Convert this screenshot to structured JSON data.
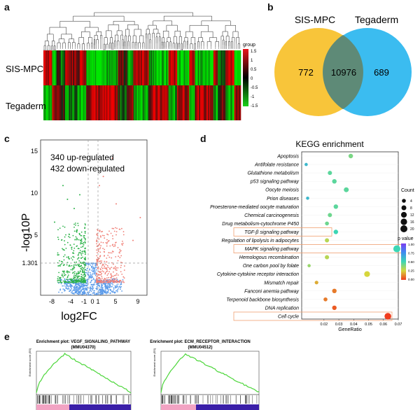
{
  "panels": {
    "a": "a",
    "b": "b",
    "c": "c",
    "d": "d",
    "e": "e"
  },
  "heatmap": {
    "legend_title": "group",
    "legend_ticks": [
      "1.5",
      "1",
      "0.5",
      "0",
      "-0.5",
      "-1",
      "-1.5"
    ],
    "row_labels": [
      "SIS-MPC",
      "Tegaderm"
    ],
    "colors": {
      "high": "#e8161a",
      "mid": "#000000",
      "low": "#19d219"
    }
  },
  "venn": {
    "left_label": "SIS-MPC",
    "right_label": "Tegaderm",
    "left_only": "772",
    "both": "10976",
    "right_only": "689",
    "colors": {
      "left": "#f8c53a",
      "right": "#3bbcf0",
      "overlap": "#5e8a77"
    }
  },
  "volcano": {
    "up_text": "340 up-regulated",
    "down_text": "432 down-regulated",
    "ylabel": "-log10P",
    "xlabel": "log2FC",
    "x_ticks": [
      "-8",
      "-4",
      "-1",
      "0",
      "1",
      "5",
      "9"
    ],
    "y_ticks": [
      "15",
      "10",
      "5",
      "1.301"
    ],
    "colors": {
      "up": "#f07f76",
      "down": "#2db24a",
      "ns": "#5b9bea"
    }
  },
  "chart_data": [
    {
      "type": "scatter",
      "title": "KEGG enrichment",
      "xlabel": "GeneRatio",
      "ylabel": "",
      "xlim": [
        0.005,
        0.07
      ],
      "x_ticks": [
        "0.02",
        "0.03",
        "0.04",
        "0.05",
        "0.06",
        "0.07"
      ],
      "size_legend_title": "Count",
      "size_legend_values": [
        "4",
        "8",
        "12",
        "16",
        "20"
      ],
      "color_legend_title": "p value",
      "color_legend_ticks": [
        "1.00",
        "0.75",
        "0.50",
        "0.25",
        "0.00"
      ],
      "categories": [
        "Apoptosis",
        "Antifolate resistance",
        "Glutathione metabolism",
        "p53 signaling pathway",
        "Oocyte meiosis",
        "Prion diseases",
        "Proesterone-mediated oocyte maturation",
        "Chemical carcinogenesis",
        "Drug metabolism-cytochrome P450",
        "TGF-β signaling pathway",
        "Regulation of lipolysis in adipocytes",
        "MAPK signaling pathway",
        "Hemologous recombination",
        "One carbon pool by folate",
        "Cytokine-cytokine receptor interaction",
        "Mismatch repair",
        "Fanconi anemia pathway",
        "Terpenoid backbone biosynthesis",
        "DNA replication",
        "Cell cycle"
      ],
      "gene_ratio": [
        0.038,
        0.008,
        0.024,
        0.027,
        0.035,
        0.009,
        0.028,
        0.024,
        0.022,
        0.028,
        0.022,
        0.069,
        0.022,
        0.01,
        0.049,
        0.015,
        0.027,
        0.021,
        0.027,
        0.063
      ],
      "count": [
        6,
        2,
        5,
        6,
        8,
        2,
        6,
        5,
        4,
        6,
        5,
        20,
        5,
        2,
        12,
        3,
        6,
        4,
        6,
        18
      ],
      "p_value": [
        0.4,
        0.6,
        0.45,
        0.45,
        0.45,
        0.6,
        0.45,
        0.42,
        0.42,
        0.5,
        0.3,
        0.5,
        0.3,
        0.35,
        0.25,
        0.18,
        0.1,
        0.1,
        0.05,
        0.0
      ],
      "highlighted": [
        "TGF-β signaling pathway",
        "MAPK signaling pathway",
        "Cell cycle"
      ]
    }
  ],
  "gsea": [
    {
      "title": "Enrichment plot: VEGF_SIGNALING_PATHWAY",
      "subtitle": "(MMU04370)",
      "ylabel": "Enrichment score (ES)"
    },
    {
      "title": "Enrichment plot: ECM_RECEPTOR_INTERACTION",
      "subtitle": "(MMU04512)",
      "ylabel": "Enrichment score (ES)"
    }
  ],
  "gsea_colors": {
    "curve": "#4cd63a",
    "pos": "#f2a3c3",
    "neg": "#3a1fa8"
  }
}
